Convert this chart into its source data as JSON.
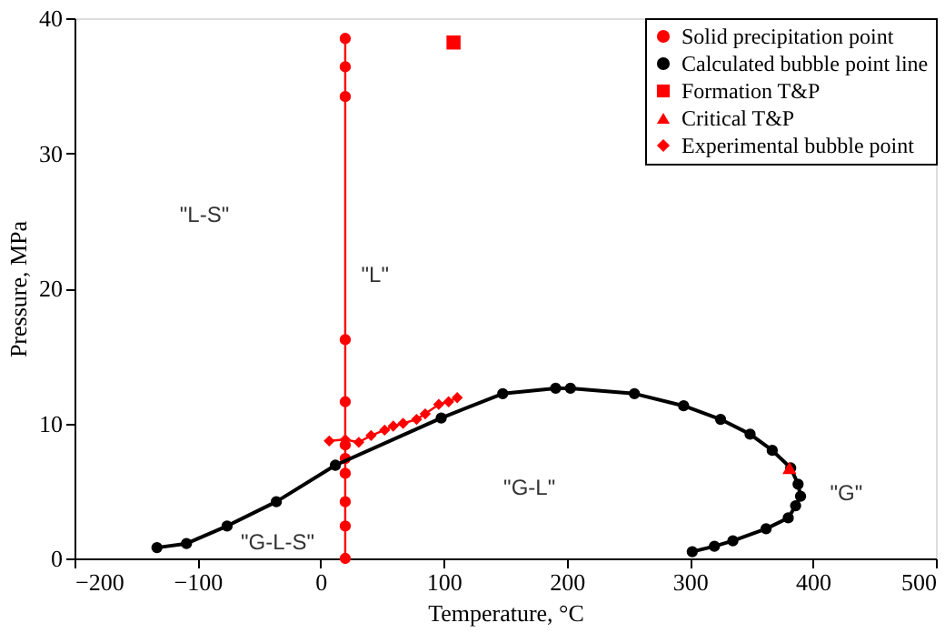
{
  "chart_data": {
    "type": "line",
    "xlabel": "Temperature, °C",
    "ylabel": "Pressure, MPa",
    "xlim": [
      -200,
      500
    ],
    "xticks": [
      -200,
      -100,
      0,
      100,
      200,
      300,
      400,
      500
    ],
    "ylim": [
      0,
      40
    ],
    "yticks": [
      0,
      10,
      20,
      30,
      40
    ],
    "grid": false,
    "legend": "top right",
    "series": [
      {
        "name": "Solid precipitation point",
        "marker": "circle",
        "color": "#ff0000",
        "x": [
          20,
          20,
          20,
          20,
          20,
          20,
          20,
          20,
          20,
          20,
          20
        ],
        "values": [
          38.5,
          36.4,
          34.2,
          16.2,
          11.6,
          8.4,
          7.4,
          6.3,
          4.2,
          2.4,
          0
        ]
      },
      {
        "name": "Calculated bubble point line",
        "marker": "circle",
        "color": "#000000",
        "x": [
          -133,
          -109,
          -76,
          -36,
          12,
          98,
          148,
          191,
          203,
          255,
          295,
          325,
          349,
          367,
          382,
          388,
          390,
          386,
          380,
          362,
          335,
          320,
          302
        ],
        "values": [
          0.8,
          1.1,
          2.4,
          4.2,
          6.9,
          10.4,
          12.2,
          12.6,
          12.6,
          12.2,
          11.3,
          10.3,
          9.2,
          8.0,
          6.7,
          5.5,
          4.6,
          3.9,
          3.0,
          2.2,
          1.3,
          0.9,
          0.5
        ]
      },
      {
        "name": "Formation T&P",
        "type": "scatter",
        "marker": "square",
        "color": "#ff0000",
        "x": [
          108
        ],
        "values": [
          38.2
        ]
      },
      {
        "name": "Critical T&P",
        "type": "scatter",
        "marker": "triangle",
        "color": "#ff0000",
        "x": [
          381
        ],
        "values": [
          6.7
        ]
      },
      {
        "name": "Experimental bubble point",
        "marker": "diamond",
        "color": "#ff0000",
        "x": [
          7,
          20,
          31,
          41,
          52,
          59,
          67,
          78,
          85,
          96,
          104,
          111
        ],
        "values": [
          8.7,
          8.8,
          8.6,
          9.1,
          9.5,
          9.8,
          10.0,
          10.3,
          10.7,
          11.4,
          11.6,
          11.9
        ]
      }
    ],
    "annotations": [
      "\"L-S\"",
      "\"L\"",
      "\"G-L-S\"",
      "\"G-L\"",
      "\"G\""
    ]
  }
}
